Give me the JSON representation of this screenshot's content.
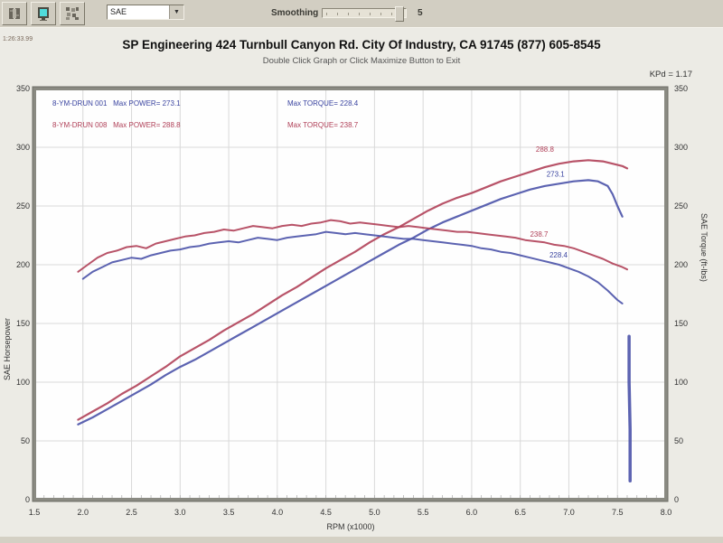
{
  "toolbar": {
    "icons": [
      "chart-icon",
      "monitor-icon",
      "grid-icon"
    ],
    "dropdown_value": "SAE",
    "dropdown_arrow": "▼",
    "smoothing_label": "Smoothing",
    "smoothing_value": "5"
  },
  "header": {
    "timestamp": "1:26:33.99",
    "title": "SP Engineering 424 Turnbull Canyon Rd. City Of Industry, CA 91745 (877) 605-8545",
    "subtitle": "Double Click Graph or Click Maximize Button to Exit",
    "correction": "KPd = 1.17"
  },
  "legend": {
    "runs": [
      {
        "id": "8-YM-DRUN 001",
        "power": "Max POWER= 273.1",
        "torque": "Max TORQUE= 228.4",
        "color": "#3a44a0"
      },
      {
        "id": "8-YM-DRUN 008",
        "power": "Max POWER= 288.8",
        "torque": "Max TORQUE= 238.7",
        "color": "#b04058"
      }
    ]
  },
  "colors": {
    "run1_blue": "#4a52a8",
    "run2_red": "#b04058",
    "grid": "#d9d9d9",
    "plot_border": "#8a8a82",
    "plot_bg": "#fefefe",
    "panel_bg": "#ecebe5",
    "toolbar_bg": "#d2cec2",
    "monitor_icon_screen": "#50dcdc"
  },
  "chart_data": {
    "type": "line",
    "title": "SP Engineering dyno run comparison",
    "xlabel": "RPM (x1000)",
    "ylabel_left": "SAE Horsepower",
    "ylabel_right": "SAE Torque (ft-lbs)",
    "xlim": [
      1.5,
      8.0
    ],
    "xstep": 0.5,
    "ylim": [
      0,
      350
    ],
    "ystep": 50,
    "grid": true,
    "series": [
      {
        "name": "run-008-horsepower",
        "color": "#b04058",
        "width": 2.2,
        "points": [
          [
            1.95,
            68
          ],
          [
            2.1,
            75
          ],
          [
            2.25,
            82
          ],
          [
            2.4,
            90
          ],
          [
            2.55,
            97
          ],
          [
            2.7,
            105
          ],
          [
            2.85,
            113
          ],
          [
            3.0,
            122
          ],
          [
            3.15,
            129
          ],
          [
            3.3,
            136
          ],
          [
            3.45,
            144
          ],
          [
            3.6,
            151
          ],
          [
            3.75,
            158
          ],
          [
            3.9,
            166
          ],
          [
            4.05,
            174
          ],
          [
            4.2,
            181
          ],
          [
            4.35,
            189
          ],
          [
            4.5,
            197
          ],
          [
            4.65,
            204
          ],
          [
            4.8,
            211
          ],
          [
            4.95,
            219
          ],
          [
            5.1,
            226
          ],
          [
            5.25,
            232
          ],
          [
            5.4,
            239
          ],
          [
            5.55,
            246
          ],
          [
            5.7,
            252
          ],
          [
            5.85,
            257
          ],
          [
            6.0,
            261
          ],
          [
            6.15,
            266
          ],
          [
            6.3,
            271
          ],
          [
            6.45,
            275
          ],
          [
            6.6,
            279
          ],
          [
            6.75,
            283
          ],
          [
            6.9,
            286
          ],
          [
            7.05,
            288
          ],
          [
            7.2,
            289
          ],
          [
            7.35,
            288
          ],
          [
            7.45,
            286
          ],
          [
            7.55,
            284
          ],
          [
            7.6,
            282
          ]
        ]
      },
      {
        "name": "run-001-horsepower",
        "color": "#4a52a8",
        "width": 2.2,
        "points": [
          [
            1.95,
            64
          ],
          [
            2.1,
            70
          ],
          [
            2.25,
            77
          ],
          [
            2.4,
            84
          ],
          [
            2.55,
            91
          ],
          [
            2.7,
            98
          ],
          [
            2.85,
            106
          ],
          [
            3.0,
            113
          ],
          [
            3.15,
            119
          ],
          [
            3.3,
            126
          ],
          [
            3.45,
            133
          ],
          [
            3.6,
            140
          ],
          [
            3.75,
            147
          ],
          [
            3.9,
            154
          ],
          [
            4.05,
            161
          ],
          [
            4.2,
            168
          ],
          [
            4.35,
            175
          ],
          [
            4.5,
            182
          ],
          [
            4.65,
            189
          ],
          [
            4.8,
            196
          ],
          [
            4.95,
            203
          ],
          [
            5.1,
            210
          ],
          [
            5.25,
            217
          ],
          [
            5.4,
            223
          ],
          [
            5.55,
            230
          ],
          [
            5.7,
            236
          ],
          [
            5.85,
            241
          ],
          [
            6.0,
            246
          ],
          [
            6.15,
            251
          ],
          [
            6.3,
            256
          ],
          [
            6.45,
            260
          ],
          [
            6.6,
            264
          ],
          [
            6.75,
            267
          ],
          [
            6.9,
            269
          ],
          [
            7.05,
            271
          ],
          [
            7.2,
            272
          ],
          [
            7.3,
            271
          ],
          [
            7.4,
            267
          ],
          [
            7.45,
            260
          ],
          [
            7.5,
            250
          ],
          [
            7.55,
            241
          ]
        ]
      },
      {
        "name": "run-008-torque",
        "color": "#b04058",
        "width": 2.0,
        "points": [
          [
            1.95,
            194
          ],
          [
            2.05,
            200
          ],
          [
            2.15,
            206
          ],
          [
            2.25,
            210
          ],
          [
            2.35,
            212
          ],
          [
            2.45,
            215
          ],
          [
            2.55,
            216
          ],
          [
            2.65,
            214
          ],
          [
            2.75,
            218
          ],
          [
            2.85,
            220
          ],
          [
            2.95,
            222
          ],
          [
            3.05,
            224
          ],
          [
            3.15,
            225
          ],
          [
            3.25,
            227
          ],
          [
            3.35,
            228
          ],
          [
            3.45,
            230
          ],
          [
            3.55,
            229
          ],
          [
            3.65,
            231
          ],
          [
            3.75,
            233
          ],
          [
            3.85,
            232
          ],
          [
            3.95,
            231
          ],
          [
            4.05,
            233
          ],
          [
            4.15,
            234
          ],
          [
            4.25,
            233
          ],
          [
            4.35,
            235
          ],
          [
            4.45,
            236
          ],
          [
            4.55,
            238
          ],
          [
            4.65,
            237
          ],
          [
            4.75,
            235
          ],
          [
            4.85,
            236
          ],
          [
            4.95,
            235
          ],
          [
            5.05,
            234
          ],
          [
            5.15,
            233
          ],
          [
            5.25,
            232
          ],
          [
            5.35,
            233
          ],
          [
            5.45,
            232
          ],
          [
            5.55,
            231
          ],
          [
            5.65,
            230
          ],
          [
            5.75,
            229
          ],
          [
            5.85,
            228
          ],
          [
            5.95,
            228
          ],
          [
            6.05,
            227
          ],
          [
            6.15,
            226
          ],
          [
            6.25,
            225
          ],
          [
            6.35,
            224
          ],
          [
            6.45,
            223
          ],
          [
            6.55,
            221
          ],
          [
            6.65,
            220
          ],
          [
            6.75,
            219
          ],
          [
            6.85,
            217
          ],
          [
            6.95,
            216
          ],
          [
            7.05,
            214
          ],
          [
            7.15,
            211
          ],
          [
            7.25,
            208
          ],
          [
            7.35,
            205
          ],
          [
            7.45,
            201
          ],
          [
            7.55,
            198
          ],
          [
            7.6,
            196
          ]
        ]
      },
      {
        "name": "run-001-torque",
        "color": "#4a52a8",
        "width": 2.0,
        "points": [
          [
            2.0,
            188
          ],
          [
            2.1,
            194
          ],
          [
            2.2,
            198
          ],
          [
            2.3,
            202
          ],
          [
            2.4,
            204
          ],
          [
            2.5,
            206
          ],
          [
            2.6,
            205
          ],
          [
            2.7,
            208
          ],
          [
            2.8,
            210
          ],
          [
            2.9,
            212
          ],
          [
            3.0,
            213
          ],
          [
            3.1,
            215
          ],
          [
            3.2,
            216
          ],
          [
            3.3,
            218
          ],
          [
            3.4,
            219
          ],
          [
            3.5,
            220
          ],
          [
            3.6,
            219
          ],
          [
            3.7,
            221
          ],
          [
            3.8,
            223
          ],
          [
            3.9,
            222
          ],
          [
            4.0,
            221
          ],
          [
            4.1,
            223
          ],
          [
            4.2,
            224
          ],
          [
            4.3,
            225
          ],
          [
            4.4,
            226
          ],
          [
            4.5,
            228
          ],
          [
            4.6,
            227
          ],
          [
            4.7,
            226
          ],
          [
            4.8,
            227
          ],
          [
            4.9,
            226
          ],
          [
            5.0,
            225
          ],
          [
            5.1,
            224
          ],
          [
            5.2,
            223
          ],
          [
            5.3,
            222
          ],
          [
            5.4,
            222
          ],
          [
            5.5,
            221
          ],
          [
            5.6,
            220
          ],
          [
            5.7,
            219
          ],
          [
            5.8,
            218
          ],
          [
            5.9,
            217
          ],
          [
            6.0,
            216
          ],
          [
            6.1,
            214
          ],
          [
            6.2,
            213
          ],
          [
            6.3,
            211
          ],
          [
            6.4,
            210
          ],
          [
            6.5,
            208
          ],
          [
            6.6,
            206
          ],
          [
            6.7,
            204
          ],
          [
            6.8,
            202
          ],
          [
            6.9,
            200
          ],
          [
            7.0,
            197
          ],
          [
            7.1,
            194
          ],
          [
            7.2,
            190
          ],
          [
            7.3,
            185
          ],
          [
            7.4,
            178
          ],
          [
            7.5,
            170
          ],
          [
            7.55,
            167
          ]
        ]
      },
      {
        "name": "run-001-tail-drop",
        "color": "#4a52a8",
        "width": 3.5,
        "points": [
          [
            7.62,
            139
          ],
          [
            7.62,
            100
          ],
          [
            7.63,
            60
          ],
          [
            7.63,
            16
          ]
        ]
      }
    ],
    "annotations": [
      {
        "text": "288.8",
        "x": 6.66,
        "y": 296,
        "color": "#b04058"
      },
      {
        "text": "273.1",
        "x": 6.77,
        "y": 275,
        "color": "#3a44a0"
      },
      {
        "text": "238.7",
        "x": 6.6,
        "y": 224,
        "color": "#b04058"
      },
      {
        "text": "228.4",
        "x": 6.8,
        "y": 206,
        "color": "#3a44a0"
      }
    ],
    "legend_position": "top-left-inside"
  }
}
